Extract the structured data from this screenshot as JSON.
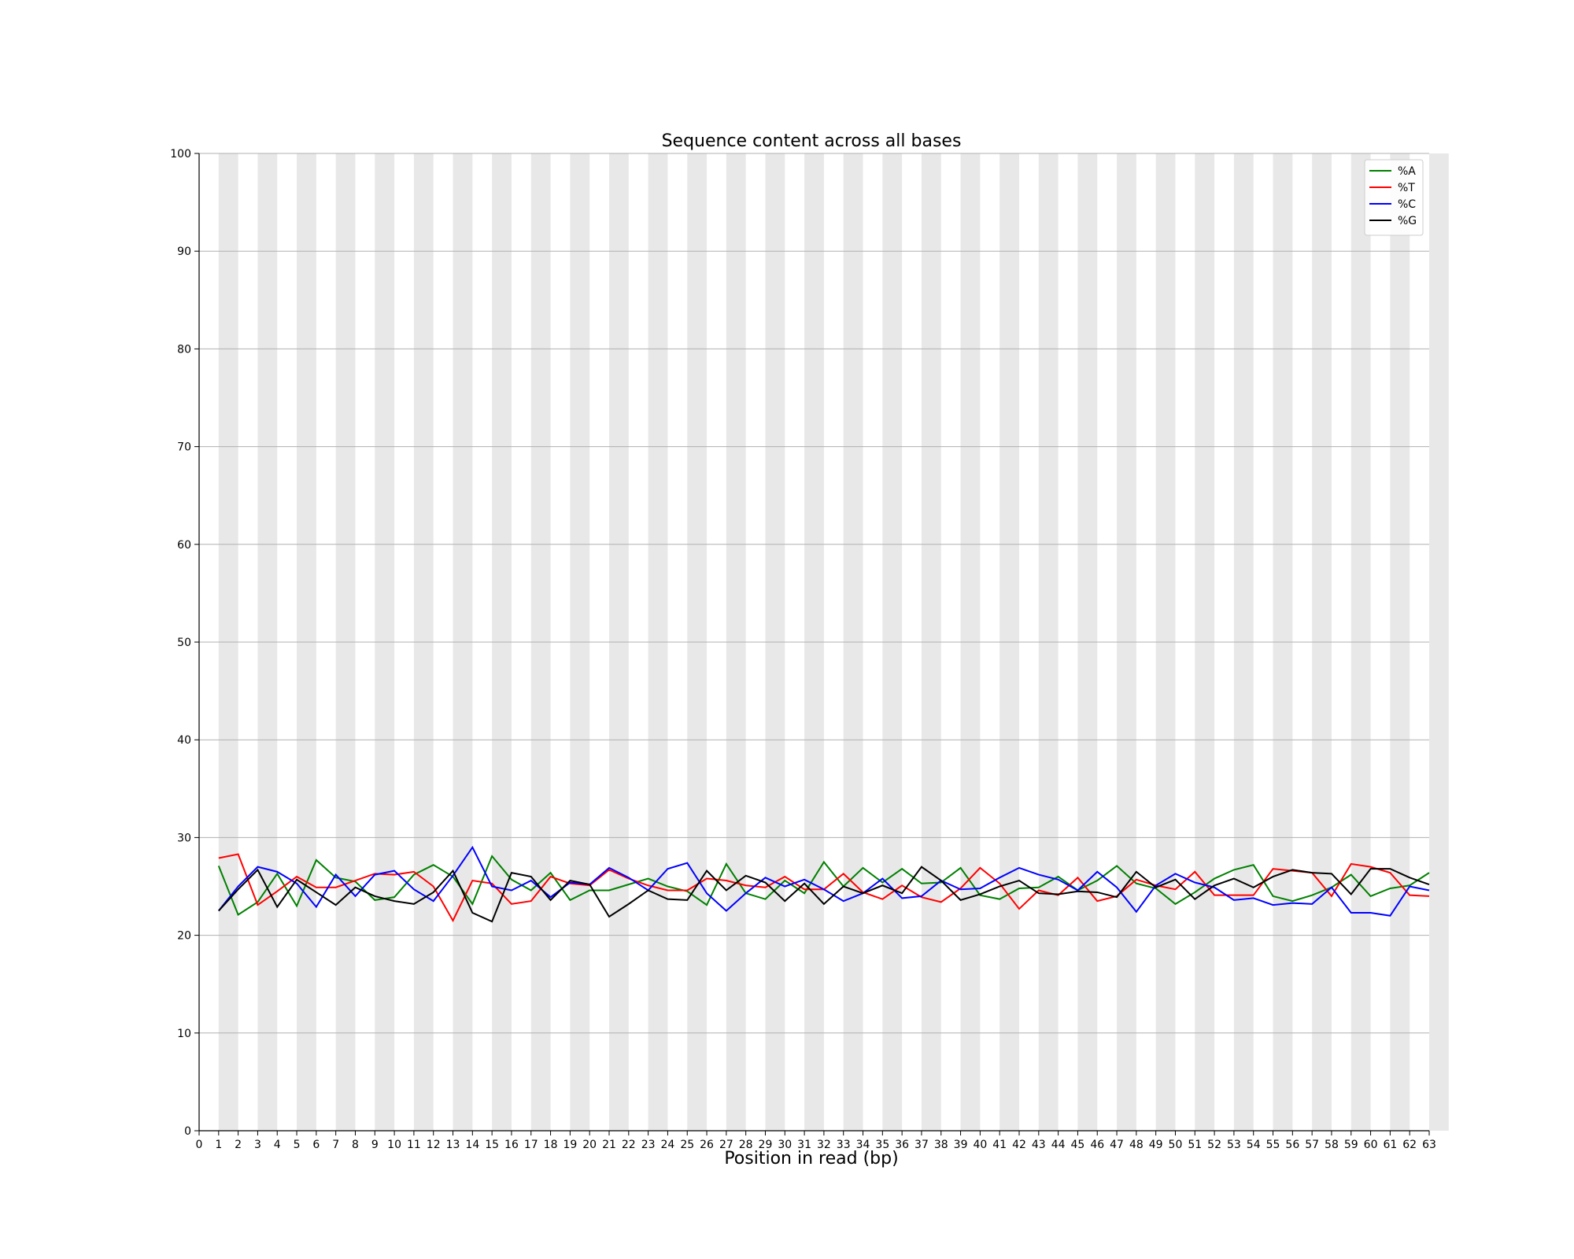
{
  "chart_data": {
    "type": "line",
    "title": "Sequence content across all bases",
    "xlabel": "Position in read (bp)",
    "ylabel": "",
    "xlim": [
      0,
      63
    ],
    "ylim": [
      0,
      100
    ],
    "xticks": [
      0,
      1,
      2,
      3,
      4,
      5,
      6,
      7,
      8,
      9,
      10,
      11,
      12,
      13,
      14,
      15,
      16,
      17,
      18,
      19,
      20,
      21,
      22,
      23,
      24,
      25,
      26,
      27,
      28,
      29,
      30,
      31,
      32,
      33,
      34,
      35,
      36,
      37,
      38,
      39,
      40,
      41,
      42,
      43,
      44,
      45,
      46,
      47,
      48,
      49,
      50,
      51,
      52,
      53,
      54,
      55,
      56,
      57,
      58,
      59,
      60,
      61,
      62,
      63
    ],
    "yticks": [
      0,
      10,
      20,
      30,
      40,
      50,
      60,
      70,
      80,
      90,
      100
    ],
    "grid": "horizontal",
    "background": "alternating grey bands at odd positions",
    "legend_position": "top-right",
    "x": [
      1,
      2,
      3,
      4,
      5,
      6,
      7,
      8,
      9,
      10,
      11,
      12,
      13,
      14,
      15,
      16,
      17,
      18,
      19,
      20,
      21,
      22,
      23,
      24,
      25,
      26,
      27,
      28,
      29,
      30,
      31,
      32,
      33,
      34,
      35,
      36,
      37,
      38,
      39,
      40,
      41,
      42,
      43,
      44,
      45,
      46,
      47,
      48,
      49,
      50,
      51,
      52,
      53,
      54,
      55,
      56,
      57,
      58,
      59,
      60,
      61,
      62,
      63
    ],
    "series": [
      {
        "name": "%A",
        "color": "#008000",
        "values": [
          27.1,
          22.1,
          23.4,
          26.3,
          23.0,
          27.7,
          25.9,
          25.5,
          23.6,
          23.9,
          26.2,
          27.2,
          26.0,
          23.2,
          28.1,
          25.7,
          24.6,
          26.4,
          23.6,
          24.6,
          24.6,
          25.2,
          25.8,
          25.0,
          24.5,
          23.1,
          27.3,
          24.3,
          23.7,
          25.6,
          24.3,
          27.5,
          25.0,
          26.9,
          25.4,
          26.8,
          25.3,
          25.4,
          26.9,
          24.1,
          23.7,
          24.8,
          24.9,
          26.0,
          24.6,
          25.6,
          27.1,
          25.3,
          24.8,
          23.2,
          24.4,
          25.8,
          26.7,
          27.2,
          24.0,
          23.5,
          24.1,
          24.9,
          26.2,
          24.0,
          24.8,
          25.1,
          26.4
        ]
      },
      {
        "name": "%T",
        "color": "#ff0000",
        "values": [
          27.9,
          28.3,
          23.1,
          24.5,
          26.0,
          24.9,
          24.9,
          25.6,
          26.3,
          26.2,
          26.5,
          25.0,
          21.5,
          25.6,
          25.3,
          23.2,
          23.5,
          26.0,
          25.3,
          25.1,
          26.7,
          25.8,
          25.1,
          24.6,
          24.6,
          25.8,
          25.6,
          25.1,
          24.9,
          26.0,
          24.7,
          24.7,
          26.3,
          24.4,
          23.7,
          25.1,
          23.9,
          23.4,
          24.8,
          26.9,
          25.3,
          22.7,
          24.6,
          24.1,
          25.9,
          23.5,
          24.0,
          25.7,
          25.1,
          24.7,
          26.5,
          24.1,
          24.1,
          24.1,
          26.8,
          26.6,
          26.4,
          24.0,
          27.3,
          27.0,
          26.4,
          24.1,
          24.0
        ]
      },
      {
        "name": "%C",
        "color": "#0000ff",
        "values": [
          22.5,
          25.0,
          27.0,
          26.5,
          25.3,
          22.9,
          26.2,
          24.0,
          26.2,
          26.6,
          24.7,
          23.5,
          26.1,
          29.0,
          25.0,
          24.6,
          25.6,
          23.9,
          25.4,
          25.2,
          26.9,
          25.9,
          24.6,
          26.8,
          27.4,
          24.3,
          22.5,
          24.3,
          25.9,
          25.0,
          25.7,
          24.7,
          23.5,
          24.3,
          25.8,
          23.8,
          24.0,
          25.6,
          24.7,
          24.8,
          25.9,
          26.9,
          26.2,
          25.7,
          24.6,
          26.5,
          24.9,
          22.4,
          25.1,
          26.3,
          25.4,
          24.9,
          23.6,
          23.8,
          23.1,
          23.3,
          23.2,
          24.9,
          22.3,
          22.3,
          22.0,
          25.0,
          24.6
        ]
      },
      {
        "name": "%G",
        "color": "#000000",
        "values": [
          22.5,
          24.7,
          26.7,
          22.9,
          25.7,
          24.4,
          23.1,
          24.9,
          24.0,
          23.5,
          23.2,
          24.4,
          26.6,
          22.3,
          21.4,
          26.4,
          26.0,
          23.6,
          25.6,
          25.2,
          21.9,
          23.2,
          24.6,
          23.7,
          23.6,
          26.6,
          24.6,
          26.1,
          25.4,
          23.5,
          25.3,
          23.2,
          25.0,
          24.3,
          25.1,
          24.3,
          27.0,
          25.6,
          23.6,
          24.2,
          25.0,
          25.6,
          24.3,
          24.2,
          24.5,
          24.4,
          23.9,
          26.5,
          24.9,
          25.7,
          23.7,
          25.1,
          25.8,
          24.9,
          26.0,
          26.7,
          26.4,
          26.3,
          24.2,
          26.8,
          26.8,
          25.9,
          25.2
        ]
      }
    ]
  }
}
